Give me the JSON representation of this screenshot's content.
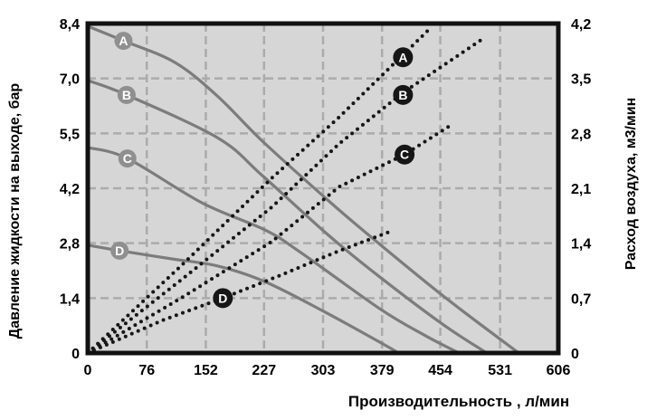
{
  "figure": {
    "name": "pump-performance-curves"
  },
  "chart_data": {
    "type": "line",
    "title": "",
    "grid": "dashed",
    "legend_position": "on-curve-circles",
    "x_axis": {
      "label": "Производительность , л/мин",
      "ticks": [
        0,
        76,
        152,
        227,
        303,
        379,
        454,
        531,
        606
      ],
      "tick_labels": [
        "0",
        "76",
        "152",
        "227",
        "303",
        "379",
        "454",
        "531",
        "606"
      ],
      "min": 0,
      "max": 606
    },
    "y_axis_left": {
      "label": "Давление жидкости на выходе, бар",
      "tick_labels": [
        "0",
        "1,4",
        "2,8",
        "4,2",
        "5,5",
        "7,0",
        "8,4"
      ],
      "min": 0,
      "max": 8.4
    },
    "y_axis_right": {
      "label": "Расход воздуха, м3/мин",
      "tick_labels": [
        "0",
        "0,7",
        "1,4",
        "2,1",
        "2,8",
        "3,5",
        "4,2"
      ],
      "min": 0,
      "max": 4.2
    },
    "pressure_series": [
      {
        "name": "A",
        "style": "solid",
        "points": [
          [
            0,
            8.33
          ],
          [
            46,
            7.96
          ],
          [
            112,
            7.41
          ],
          [
            167,
            6.55
          ],
          [
            225,
            5.4
          ],
          [
            309,
            3.9
          ],
          [
            361,
            3.02
          ],
          [
            458,
            1.45
          ],
          [
            555,
            0
          ]
        ],
        "label_at": [
          46,
          7.96
        ]
      },
      {
        "name": "B",
        "style": "solid",
        "points": [
          [
            0,
            6.95
          ],
          [
            50,
            6.58
          ],
          [
            167,
            5.49
          ],
          [
            225,
            4.52
          ],
          [
            309,
            3.02
          ],
          [
            376,
            1.94
          ],
          [
            458,
            0.72
          ],
          [
            514,
            0
          ]
        ],
        "label_at": [
          50,
          6.58
        ]
      },
      {
        "name": "C",
        "style": "solid",
        "points": [
          [
            0,
            5.24
          ],
          [
            51,
            4.96
          ],
          [
            147,
            3.83
          ],
          [
            228,
            3.14
          ],
          [
            273,
            2.58
          ],
          [
            376,
            1.13
          ],
          [
            435,
            0.44
          ],
          [
            478,
            0
          ]
        ],
        "label_at": [
          51,
          4.96
        ]
      },
      {
        "name": "D",
        "style": "solid",
        "points": [
          [
            0,
            2.75
          ],
          [
            41,
            2.61
          ],
          [
            108,
            2.4
          ],
          [
            167,
            2.22
          ],
          [
            228,
            1.82
          ],
          [
            304,
            1.06
          ],
          [
            382,
            0.21
          ],
          [
            400,
            0
          ]
        ],
        "label_at": [
          41,
          2.61
        ]
      }
    ],
    "air_series": [
      {
        "name": "A",
        "style": "dotted",
        "points": [
          [
            0,
            0
          ],
          [
            120,
            1.11
          ],
          [
            237,
            2.23
          ],
          [
            322,
            2.99
          ],
          [
            382,
            3.57
          ],
          [
            438,
            4.11
          ]
        ],
        "label_at": [
          406,
          3.77
        ]
      },
      {
        "name": "B",
        "style": "dotted",
        "points": [
          [
            0,
            0
          ],
          [
            120,
            0.93
          ],
          [
            237,
            1.86
          ],
          [
            324,
            2.67
          ],
          [
            406,
            3.32
          ],
          [
            511,
            4.02
          ]
        ],
        "label_at": [
          406,
          3.29
        ]
      },
      {
        "name": "C",
        "style": "dotted",
        "points": [
          [
            0,
            0
          ],
          [
            120,
            0.7
          ],
          [
            237,
            1.42
          ],
          [
            324,
            2.12
          ],
          [
            408,
            2.53
          ],
          [
            467,
            2.9
          ]
        ],
        "label_at": [
          408,
          2.53
        ]
      },
      {
        "name": "D",
        "style": "dotted",
        "points": [
          [
            0,
            0
          ],
          [
            97,
            0.42
          ],
          [
            174,
            0.7
          ],
          [
            248,
            0.99
          ],
          [
            318,
            1.28
          ],
          [
            390,
            1.55
          ]
        ],
        "label_at": [
          174,
          0.7
        ]
      }
    ],
    "colors": {
      "plot_bg": "#d6d6d6",
      "grid": "#ababab",
      "border": "#111111",
      "solid_curve": "#7c7c7c",
      "solid_label_bg": "#8f8f8f",
      "dotted_curve": "#161616",
      "dotted_label_bg": "#161616",
      "label_letter": "#ffffff",
      "text": "#000000",
      "page_bg": "#ffffff"
    }
  }
}
